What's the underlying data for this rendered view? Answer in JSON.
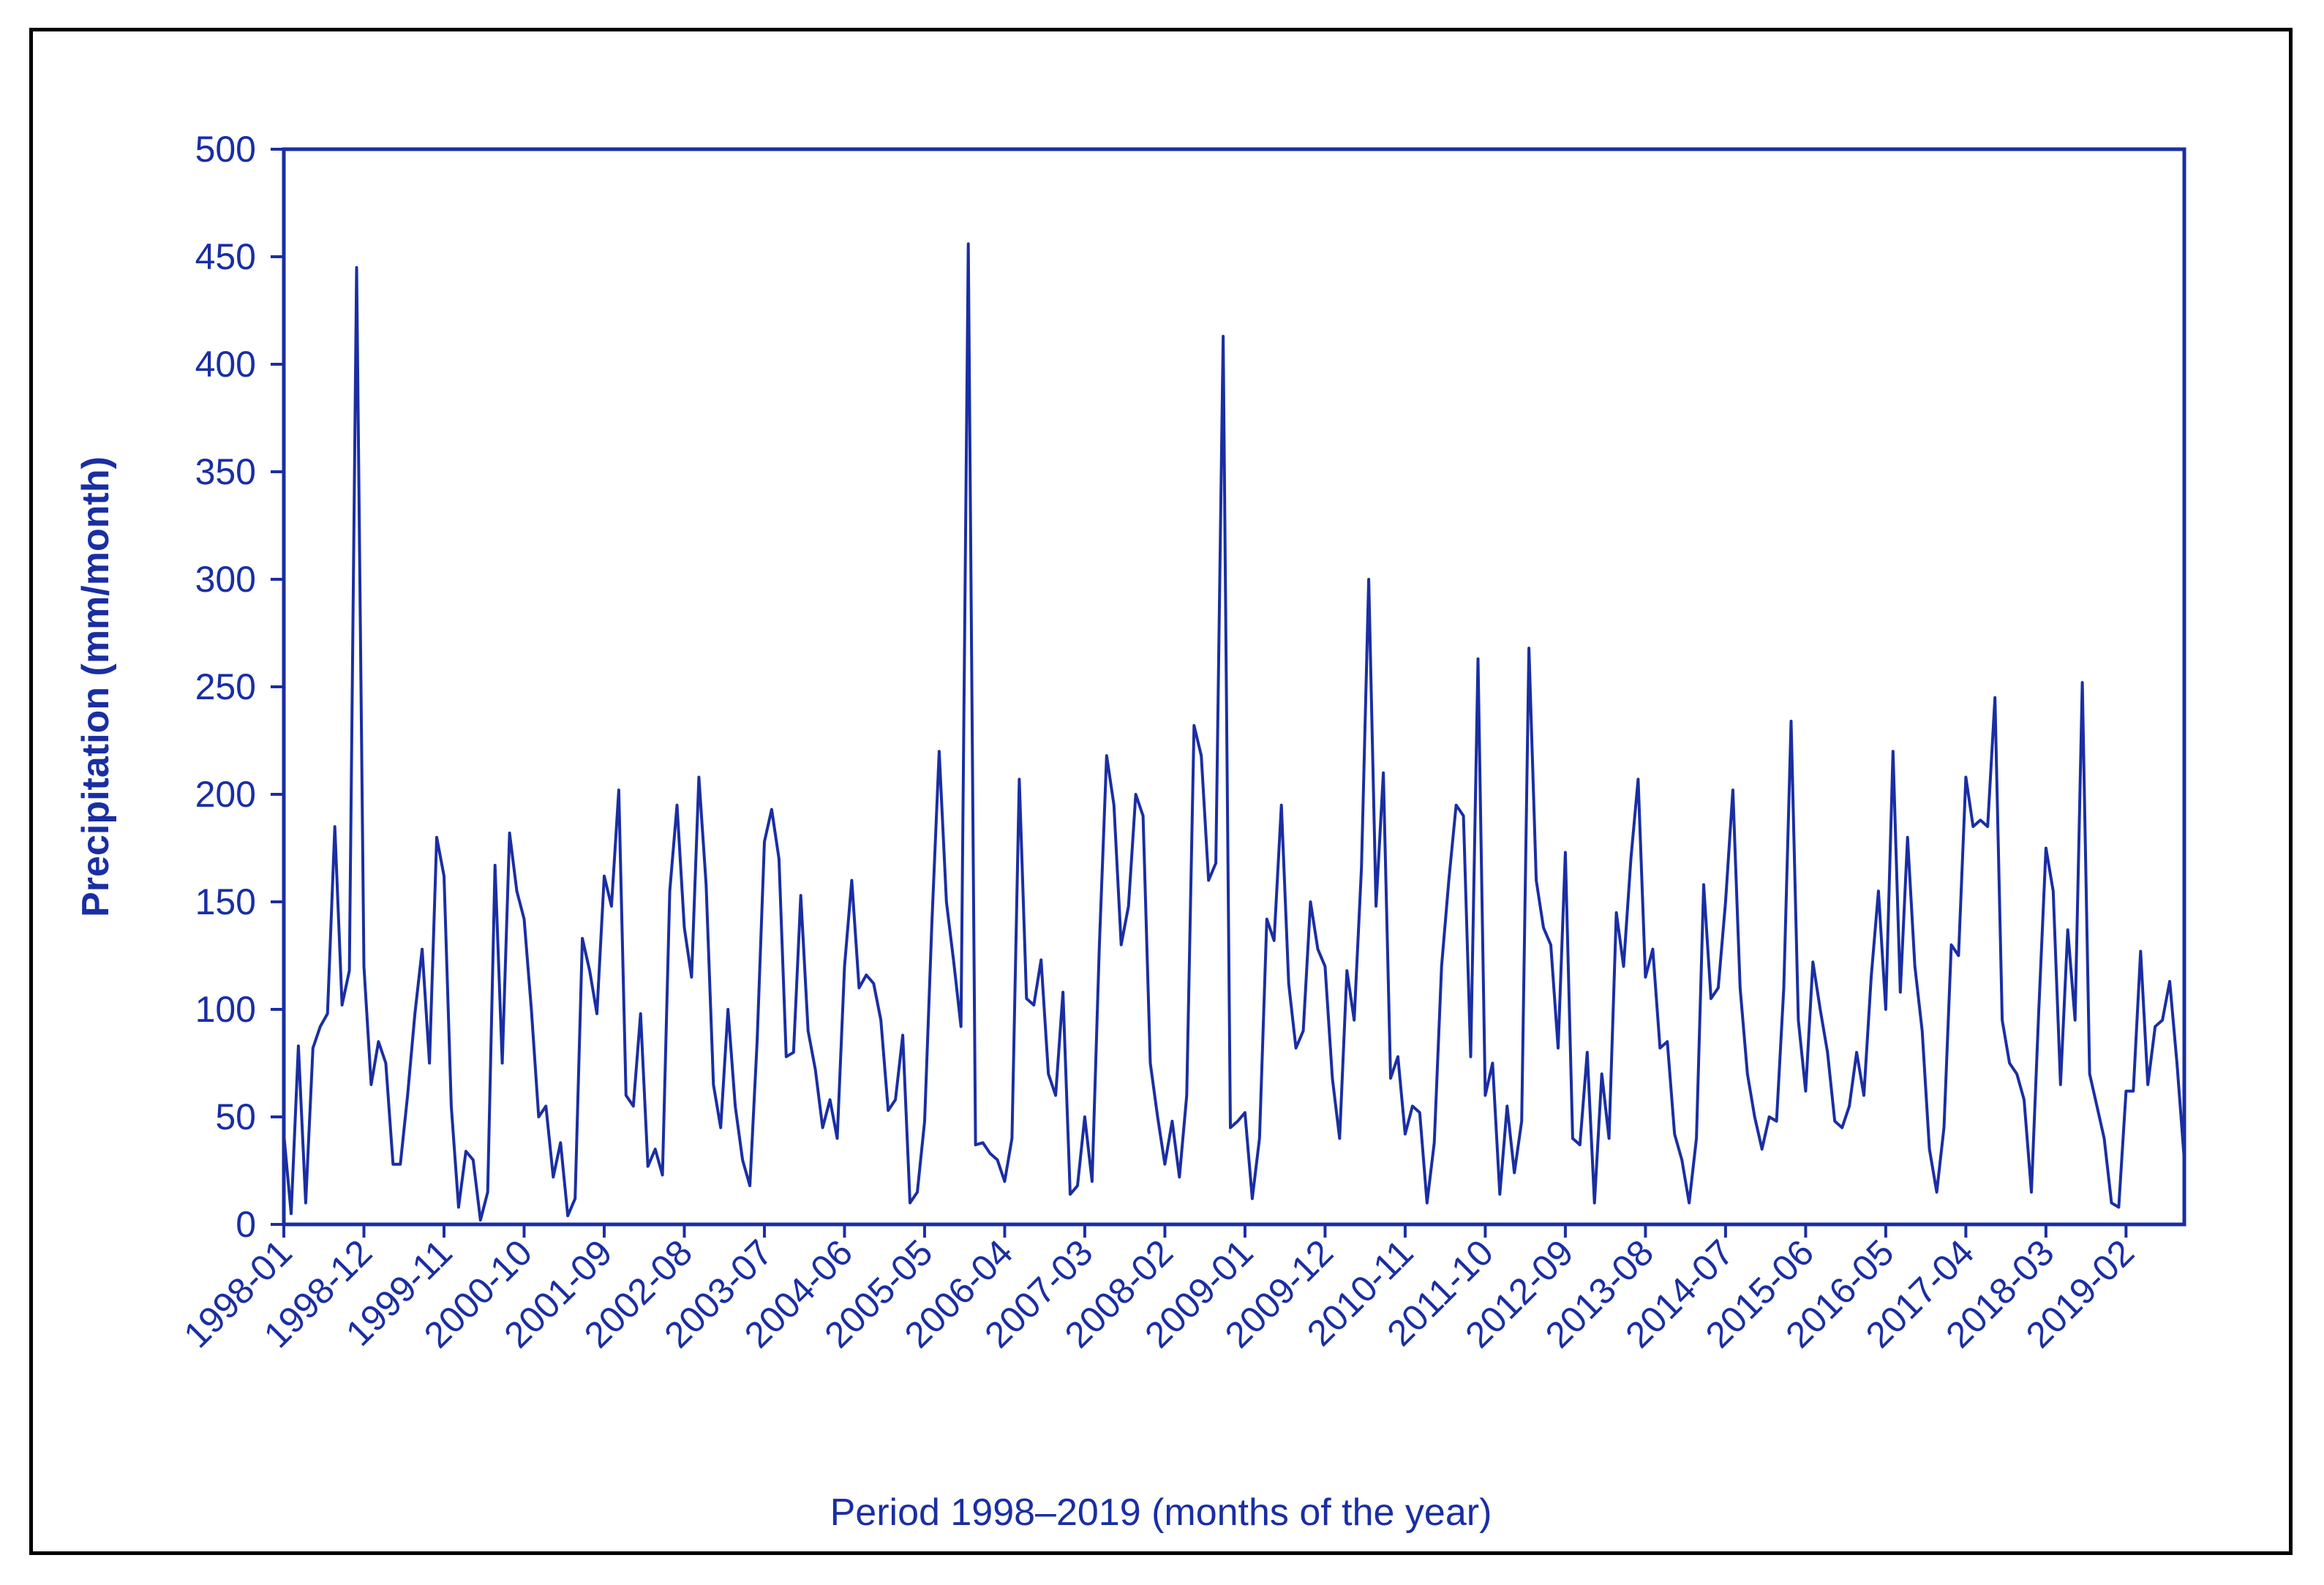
{
  "chart_data": {
    "type": "line",
    "title": "",
    "xlabel": "Period 1998–2019 (months of the year)",
    "ylabel": "Precipitation (mm/month)",
    "ylim": [
      0,
      500
    ],
    "yticks": [
      0,
      50,
      100,
      150,
      200,
      250,
      300,
      350,
      400,
      450,
      500
    ],
    "x_tick_labels": [
      "1998-01",
      "1998-12",
      "1999-11",
      "2000-10",
      "2001-09",
      "2002-08",
      "2003-07",
      "2004-06",
      "2005-05",
      "2006-04",
      "2007-03",
      "2008-02",
      "2009-01",
      "2009-12",
      "2010-11",
      "2011-10",
      "2012-09",
      "2013-08",
      "2014-07",
      "2015-06",
      "2016-05",
      "2017-04",
      "2018-03",
      "2019-02"
    ],
    "x_start": "1998-01",
    "x_end": "2019-12",
    "grid": false,
    "legend": false,
    "line_color": "#1a2ea3",
    "series": [
      {
        "values": [
          42,
          5,
          83,
          10,
          82,
          92,
          98,
          185,
          102,
          118,
          445,
          120,
          65,
          85,
          75,
          28,
          28,
          60,
          98,
          128,
          75,
          180,
          162,
          55,
          8,
          34,
          30,
          2,
          15,
          167,
          75,
          182,
          155,
          142,
          100,
          50,
          55,
          22,
          38,
          4,
          12,
          133,
          118,
          98,
          162,
          148,
          202,
          60,
          55,
          98,
          27,
          35,
          23,
          155,
          195,
          138,
          115,
          208,
          158,
          65,
          45,
          100,
          55,
          30,
          18,
          85,
          178,
          193,
          170,
          78,
          80,
          153,
          90,
          72,
          45,
          58,
          40,
          120,
          160,
          110,
          116,
          112,
          95,
          53,
          58,
          88,
          10,
          15,
          48,
          140,
          220,
          150,
          122,
          92,
          456,
          37,
          38,
          33,
          30,
          20,
          40,
          207,
          105,
          102,
          123,
          70,
          60,
          108,
          14,
          18,
          50,
          20,
          130,
          218,
          195,
          130,
          148,
          200,
          190,
          75,
          50,
          28,
          48,
          22,
          60,
          232,
          218,
          160,
          168,
          413,
          45,
          48,
          52,
          12,
          40,
          142,
          132,
          195,
          112,
          82,
          90,
          150,
          128,
          120,
          68,
          40,
          118,
          95,
          166,
          300,
          148,
          210,
          68,
          78,
          42,
          55,
          52,
          10,
          38,
          120,
          160,
          195,
          190,
          78,
          263,
          60,
          75,
          14,
          55,
          24,
          48,
          268,
          160,
          138,
          130,
          82,
          173,
          40,
          37,
          80,
          10,
          70,
          40,
          145,
          120,
          170,
          207,
          115,
          128,
          82,
          85,
          42,
          30,
          10,
          40,
          158,
          105,
          110,
          150,
          202,
          110,
          70,
          50,
          35,
          50,
          48,
          110,
          234,
          95,
          62,
          122,
          100,
          80,
          48,
          45,
          55,
          80,
          60,
          115,
          155,
          100,
          220,
          108,
          180,
          120,
          90,
          35,
          15,
          45,
          130,
          125,
          208,
          185,
          188,
          185,
          245,
          95,
          75,
          70,
          58,
          15,
          98,
          175,
          155,
          65,
          137,
          95,
          252,
          70,
          55,
          40,
          10,
          8,
          62,
          62,
          127,
          65,
          92,
          95,
          113,
          75,
          30
        ]
      }
    ]
  }
}
